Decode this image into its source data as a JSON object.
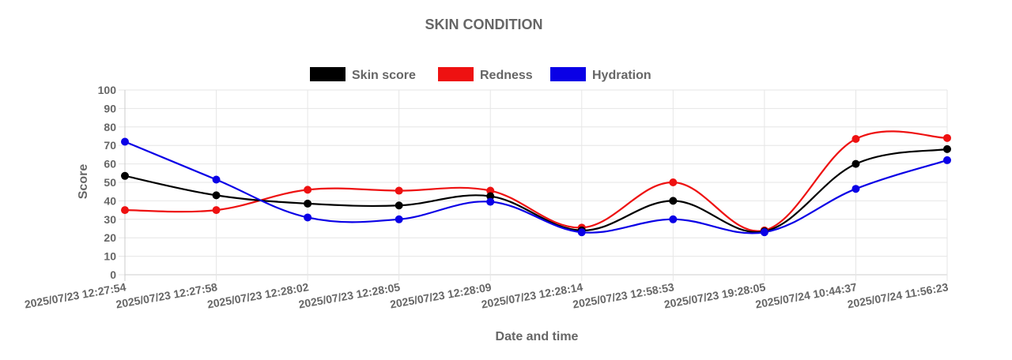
{
  "chart_data": {
    "type": "line",
    "title": "SKIN CONDITION",
    "xlabel": "Date and time",
    "ylabel": "Score",
    "ylim": [
      0,
      100
    ],
    "yticks": [
      0,
      10,
      20,
      30,
      40,
      50,
      60,
      70,
      80,
      90,
      100
    ],
    "grid": true,
    "legend_position": "top",
    "categories": [
      "2025/07/23 12:27:54",
      "2025/07/23 12:27:58",
      "2025/07/23 12:28:02",
      "2025/07/23 12:28:05",
      "2025/07/23 12:28:09",
      "2025/07/23 12:28:14",
      "2025/07/23 12:58:53",
      "2025/07/23 19:28:05",
      "2025/07/24 10:44:37",
      "2025/07/24 11:56:23"
    ],
    "series": [
      {
        "name": "Skin score",
        "color": "#000000",
        "values": [
          53.5,
          43,
          38.5,
          37.5,
          42.5,
          24,
          40,
          23.5,
          60,
          68
        ]
      },
      {
        "name": "Redness",
        "color": "#ee1111",
        "values": [
          35,
          35,
          46,
          45.5,
          45.5,
          25.5,
          50,
          24,
          73.5,
          74
        ]
      },
      {
        "name": "Hydration",
        "color": "#0a00e6",
        "values": [
          72,
          51.5,
          31,
          30,
          39.5,
          23,
          30,
          23,
          46.5,
          62
        ]
      }
    ]
  }
}
